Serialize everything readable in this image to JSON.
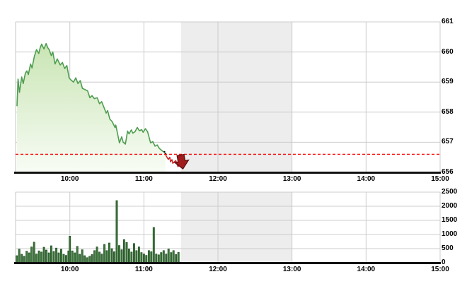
{
  "colors": {
    "line_up": "#4e9d50",
    "line_down": "#cf2020",
    "area_top": "#c9e5b4",
    "area_bottom": "#f8fcf5",
    "reference_red": "#ff0000",
    "arrow_fill": "#a11c1c",
    "arrow_border": "#5a0d0d",
    "volume_bar_fill": "#3f7a3f",
    "volume_bar_border": "#1d4a1d",
    "grid": "#cccccc",
    "plot_border": "#c5c5c5",
    "session_band": "#ededed",
    "axis_black": "#111111"
  },
  "chart_data": [
    {
      "type": "area",
      "name": "intraday-index-price",
      "x_unit": "hour-decimal",
      "x_range": [
        9.267,
        15.0
      ],
      "y_range": [
        656,
        661
      ],
      "y_ticks": [
        661,
        660,
        659,
        658,
        657,
        656
      ],
      "x_tick_values": [
        10,
        11,
        12,
        13,
        14,
        15
      ],
      "x_tick_labels": [
        "10:00",
        "11:00",
        "12:00",
        "13:00",
        "14:00",
        "15:00"
      ],
      "reference_value": 656.6,
      "last_value": 656.25,
      "session_break": [
        11.5,
        13.0
      ],
      "grid": true,
      "legend": "none",
      "marker": "down-arrow-at-last-point",
      "points": [
        [
          9.286,
          658.2
        ],
        [
          9.3,
          659.1
        ],
        [
          9.32,
          658.66
        ],
        [
          9.35,
          659.17
        ],
        [
          9.37,
          658.95
        ],
        [
          9.4,
          659.3
        ],
        [
          9.42,
          659.37
        ],
        [
          9.44,
          659.25
        ],
        [
          9.47,
          659.6
        ],
        [
          9.49,
          659.47
        ],
        [
          9.52,
          659.85
        ],
        [
          9.55,
          660.08
        ],
        [
          9.58,
          659.95
        ],
        [
          9.6,
          660.15
        ],
        [
          9.62,
          660.26
        ],
        [
          9.65,
          660.1
        ],
        [
          9.68,
          660.28
        ],
        [
          9.7,
          660.15
        ],
        [
          9.72,
          660.08
        ],
        [
          9.75,
          659.88
        ],
        [
          9.77,
          660.0
        ],
        [
          9.8,
          659.6
        ],
        [
          9.83,
          659.77
        ],
        [
          9.87,
          659.57
        ],
        [
          9.9,
          659.65
        ],
        [
          9.93,
          659.45
        ],
        [
          9.96,
          659.55
        ],
        [
          9.99,
          659.14
        ],
        [
          10.01,
          659.08
        ],
        [
          10.05,
          659.0
        ],
        [
          10.08,
          659.14
        ],
        [
          10.11,
          658.95
        ],
        [
          10.14,
          659.05
        ],
        [
          10.17,
          658.79
        ],
        [
          10.24,
          658.71
        ],
        [
          10.27,
          658.48
        ],
        [
          10.3,
          658.55
        ],
        [
          10.33,
          658.45
        ],
        [
          10.37,
          658.48
        ],
        [
          10.4,
          658.28
        ],
        [
          10.43,
          658.35
        ],
        [
          10.46,
          658.16
        ],
        [
          10.49,
          657.97
        ],
        [
          10.51,
          658.05
        ],
        [
          10.54,
          657.77
        ],
        [
          10.57,
          657.69
        ],
        [
          10.61,
          657.49
        ],
        [
          10.62,
          657.57
        ],
        [
          10.65,
          657.22
        ],
        [
          10.67,
          656.98
        ],
        [
          10.7,
          657.18
        ],
        [
          10.72,
          657.0
        ],
        [
          10.75,
          656.94
        ],
        [
          10.78,
          657.37
        ],
        [
          10.8,
          657.28
        ],
        [
          10.83,
          657.41
        ],
        [
          10.85,
          657.3
        ],
        [
          10.88,
          657.35
        ],
        [
          10.91,
          657.49
        ],
        [
          10.94,
          657.38
        ],
        [
          10.97,
          657.42
        ],
        [
          10.99,
          657.33
        ],
        [
          11.02,
          657.45
        ],
        [
          11.05,
          657.35
        ],
        [
          11.09,
          656.98
        ],
        [
          11.12,
          657.02
        ],
        [
          11.15,
          656.87
        ],
        [
          11.18,
          656.91
        ],
        [
          11.21,
          656.79
        ],
        [
          11.25,
          656.71
        ],
        [
          11.28,
          656.67
        ],
        [
          11.3,
          656.55
        ],
        [
          11.33,
          656.43
        ],
        [
          11.35,
          656.5
        ],
        [
          11.36,
          656.35
        ],
        [
          11.38,
          656.42
        ],
        [
          11.39,
          656.3
        ],
        [
          11.43,
          656.39
        ],
        [
          11.46,
          656.19
        ],
        [
          11.49,
          656.25
        ]
      ]
    },
    {
      "type": "bar",
      "name": "intraday-volume",
      "x_unit": "hour-decimal",
      "x_range": [
        9.267,
        15.0
      ],
      "y_range": [
        0,
        2500
      ],
      "y_ticks": [
        2500,
        2000,
        1500,
        1000,
        500,
        0
      ],
      "x_tick_values": [
        10,
        11,
        12,
        13,
        14,
        15
      ],
      "x_tick_labels": [
        "10:00",
        "11:00",
        "12:00",
        "13:00",
        "14:00",
        "15:00"
      ],
      "session_break": [
        11.5,
        13.0
      ],
      "grid": true,
      "points": [
        [
          9.283,
          250
        ],
        [
          9.317,
          480
        ],
        [
          9.35,
          300
        ],
        [
          9.383,
          230
        ],
        [
          9.417,
          410
        ],
        [
          9.45,
          350
        ],
        [
          9.483,
          560
        ],
        [
          9.517,
          730
        ],
        [
          9.55,
          310
        ],
        [
          9.583,
          420
        ],
        [
          9.617,
          380
        ],
        [
          9.65,
          550
        ],
        [
          9.683,
          450
        ],
        [
          9.717,
          350
        ],
        [
          9.75,
          600
        ],
        [
          9.783,
          400
        ],
        [
          9.817,
          520
        ],
        [
          9.85,
          350
        ],
        [
          9.883,
          480
        ],
        [
          9.917,
          300
        ],
        [
          9.95,
          260
        ],
        [
          9.983,
          420
        ],
        [
          10.0,
          940
        ],
        [
          10.033,
          420
        ],
        [
          10.067,
          350
        ],
        [
          10.1,
          580
        ],
        [
          10.133,
          300
        ],
        [
          10.167,
          460
        ],
        [
          10.2,
          250
        ],
        [
          10.233,
          180
        ],
        [
          10.267,
          230
        ],
        [
          10.3,
          290
        ],
        [
          10.333,
          430
        ],
        [
          10.367,
          560
        ],
        [
          10.4,
          380
        ],
        [
          10.433,
          310
        ],
        [
          10.467,
          650
        ],
        [
          10.5,
          430
        ],
        [
          10.533,
          700
        ],
        [
          10.567,
          500
        ],
        [
          10.6,
          390
        ],
        [
          10.633,
          2200
        ],
        [
          10.667,
          610
        ],
        [
          10.7,
          460
        ],
        [
          10.733,
          820
        ],
        [
          10.767,
          720
        ],
        [
          10.8,
          490
        ],
        [
          10.833,
          380
        ],
        [
          10.867,
          680
        ],
        [
          10.9,
          430
        ],
        [
          10.933,
          560
        ],
        [
          10.967,
          360
        ],
        [
          11.0,
          310
        ],
        [
          11.033,
          260
        ],
        [
          11.067,
          430
        ],
        [
          11.1,
          390
        ],
        [
          11.133,
          1250
        ],
        [
          11.167,
          310
        ],
        [
          11.2,
          280
        ],
        [
          11.233,
          360
        ],
        [
          11.267,
          430
        ],
        [
          11.3,
          310
        ],
        [
          11.333,
          490
        ],
        [
          11.367,
          360
        ],
        [
          11.4,
          430
        ],
        [
          11.433,
          290
        ],
        [
          11.467,
          370
        ]
      ]
    }
  ]
}
